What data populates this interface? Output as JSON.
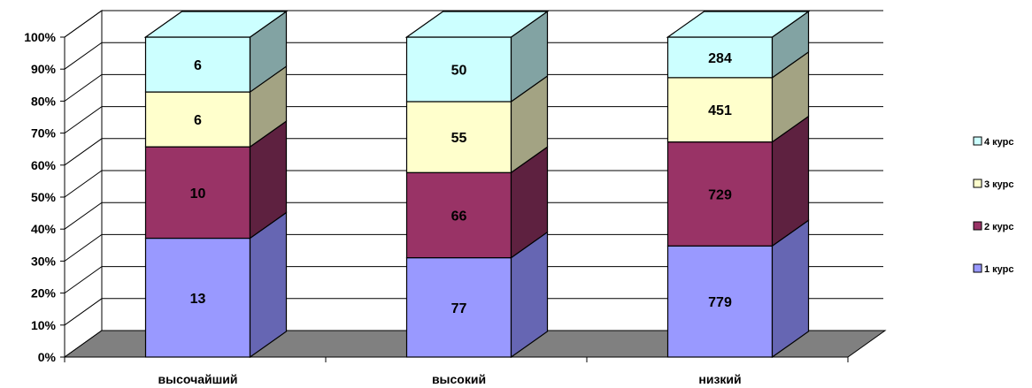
{
  "chart_data": {
    "type": "bar",
    "stacked": "percent",
    "three_d": true,
    "categories": [
      "высочайший",
      "высокий",
      "низкий"
    ],
    "series": [
      {
        "name": "1 курс",
        "values": [
          13,
          77,
          779
        ],
        "color": "#9999ff",
        "side_color": "#6666b3"
      },
      {
        "name": "2 курс",
        "values": [
          10,
          66,
          729
        ],
        "color": "#993366",
        "side_color": "#5e2140"
      },
      {
        "name": "3 курс",
        "values": [
          6,
          55,
          451
        ],
        "color": "#ffffcc",
        "side_color": "#a3a383"
      },
      {
        "name": "4 курс",
        "values": [
          6,
          50,
          284
        ],
        "color": "#ccffff",
        "side_color": "#82a3a3"
      }
    ],
    "y_ticks": [
      "0%",
      "10%",
      "20%",
      "30%",
      "40%",
      "50%",
      "60%",
      "70%",
      "80%",
      "90%",
      "100%"
    ],
    "ylim": [
      0,
      100
    ],
    "grid": true,
    "legend": "right",
    "floor_color": "#808080"
  }
}
